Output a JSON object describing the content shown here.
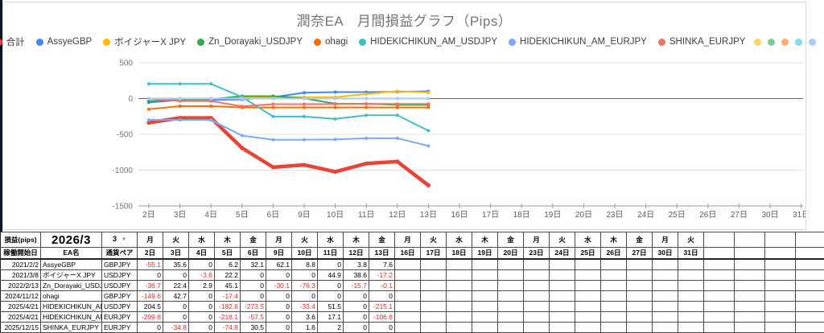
{
  "chart_data": {
    "type": "line",
    "title": "潤奈EA　月間損益グラフ（Pips）",
    "xlabel": "",
    "ylabel": "",
    "unit": "Pips",
    "ylim": [
      -1500,
      500
    ],
    "y_ticks": [
      500,
      0,
      -500,
      -1000,
      -1500
    ],
    "x_tick_labels": [
      "2日",
      "3日",
      "4日",
      "5日",
      "6日",
      "9日",
      "10日",
      "11日",
      "12日",
      "13日",
      "16日",
      "17日",
      "18日",
      "19日",
      "20日",
      "23日",
      "24日",
      "25日",
      "26日",
      "27日",
      "30日",
      "31日"
    ],
    "grid": true,
    "legend_position": "top",
    "series": [
      {
        "name": "合計",
        "color": "#ea4335",
        "line_width": 4.5,
        "values": [
          -336.7,
          -270.8,
          -271.5,
          -690.9,
          -959.3,
          -927.3,
          -1023.0,
          -907.5,
          -880.8,
          -1212.4
        ]
      },
      {
        "name": "AssyeGBP",
        "color": "#4285f4",
        "line_width": 2,
        "values": [
          -55.1,
          -19.5,
          -19.5,
          -13.3,
          18.8,
          80.9,
          89.7,
          89.7,
          93.5,
          101.1
        ]
      },
      {
        "name": "ボイジャーX JPY",
        "color": "#fbbc04",
        "line_width": 2,
        "values": [
          0,
          0,
          -3.6,
          18.6,
          18.6,
          18.6,
          18.6,
          63.5,
          102.1,
          84.9
        ]
      },
      {
        "name": "Zn_Dorayaki_USDJPY",
        "color": "#34a853",
        "line_width": 2,
        "values": [
          -36.7,
          -14.3,
          -11.4,
          33.7,
          33.7,
          3.6,
          -72.7,
          -72.7,
          -88.4,
          -88.5
        ]
      },
      {
        "name": "ohagi",
        "color": "#ff6d01",
        "line_width": 2,
        "values": [
          -149.6,
          -106.9,
          -106.9,
          -124.3,
          -124.3,
          -124.3,
          -124.3,
          -124.3,
          -124.3,
          -124.3
        ]
      },
      {
        "name": "HIDEKICHIKUN_AM_USDJPY",
        "color": "#46bdc6",
        "line_width": 2,
        "values": [
          204.5,
          204.5,
          204.5,
          21.9,
          -251.6,
          -251.6,
          -285.0,
          -233.5,
          -233.5,
          -448.6
        ]
      },
      {
        "name": "HIDEKICHIKUN_AM_EURJPY",
        "color": "#7baaf7",
        "line_width": 2,
        "values": [
          -299.8,
          -299.8,
          -299.8,
          -517.9,
          -575.4,
          -575.4,
          -571.8,
          -554.7,
          -554.7,
          -661.5
        ]
      },
      {
        "name": "SHINKA_EURJPY",
        "color": "#f0726a",
        "line_width": 2,
        "values": [
          0,
          -34.8,
          -34.8,
          -109.6,
          -79.1,
          -79.1,
          -77.5,
          -75.5,
          -75.5,
          -75.5
        ]
      }
    ],
    "hidden_series": [
      {
        "name": "",
        "color": "#fdd663",
        "line_width": 2,
        "values": [
          0,
          0,
          0,
          0,
          0,
          0,
          0,
          0,
          0,
          0
        ]
      },
      {
        "name": "",
        "color": "#81c995",
        "line_width": 2,
        "values": [
          0,
          0,
          0,
          0,
          0,
          0,
          0,
          0,
          0,
          0
        ]
      },
      {
        "name": "",
        "color": "#fcad70",
        "line_width": 2,
        "values": [
          0,
          0,
          0,
          0,
          0,
          0,
          0,
          0,
          0,
          0
        ]
      },
      {
        "name": "",
        "color": "#86dbe8",
        "line_width": 2,
        "values": [
          0,
          0,
          0,
          0,
          0,
          0,
          0,
          0,
          0,
          0
        ]
      },
      {
        "name": "",
        "color": "#aecbfa",
        "line_width": 2,
        "values": [
          0,
          0,
          0,
          0,
          0,
          0,
          0,
          0,
          0,
          0
        ]
      }
    ],
    "axis_colors": {
      "label": "#757575",
      "baseline": "#616161",
      "gridline": "#e0e0e0",
      "axisline": "#9e9e9e"
    }
  },
  "table": {
    "unit_label": "損益(pips)",
    "month_label": "2026/3",
    "month_selector_value": "3",
    "col_headers": {
      "start_date": "稼働開始日",
      "ea_name": "EA名",
      "pair": "通貨ペア"
    },
    "weekdays": [
      "月",
      "火",
      "水",
      "木",
      "金",
      "月",
      "火",
      "水",
      "木",
      "金",
      "月",
      "火",
      "水",
      "木",
      "金",
      "月",
      "火",
      "水",
      "木",
      "金",
      "月",
      "火"
    ],
    "date_headers": [
      "2日",
      "3日",
      "4日",
      "5日",
      "6日",
      "9日",
      "10日",
      "11日",
      "12日",
      "13日",
      "16日",
      "17日",
      "18日",
      "19日",
      "20日",
      "23日",
      "24日",
      "25日",
      "26日",
      "27日",
      "30日",
      "31日"
    ],
    "empty_trailing_columns": 4,
    "colors": {
      "negative_value": "#f02b2b"
    },
    "rows": [
      {
        "start_date": "2021/2/2",
        "ea_name": "AssyeGBP",
        "pair": "GBPJPY",
        "values": [
          "-55.1",
          "35.6",
          "0",
          "6.2",
          "32.1",
          "62.1",
          "8.8",
          "0",
          "3.8",
          "7.6"
        ]
      },
      {
        "start_date": "2021/3/8",
        "ea_name": "ボイジャーX JPY",
        "pair": "USDJPY",
        "values": [
          "0",
          "0",
          "-3.6",
          "22.2",
          "0",
          "0",
          "0",
          "44.9",
          "38.6",
          "-17.2"
        ]
      },
      {
        "start_date": "2022/2/13",
        "ea_name": "Zn_Dorayaki_USDJPY",
        "pair": "USDJPY",
        "values": [
          "-36.7",
          "22.4",
          "2.9",
          "45.1",
          "0",
          "-30.1",
          "-76.3",
          "0",
          "-15.7",
          "-0.1"
        ]
      },
      {
        "start_date": "2024/11/12",
        "ea_name": "ohagi",
        "pair": "GBPJPY",
        "values": [
          "-149.6",
          "42.7",
          "0",
          "-17.4",
          "0",
          "0",
          "0",
          "0",
          "0",
          "0"
        ]
      },
      {
        "start_date": "2025/4/21",
        "ea_name": "HIDEKICHIKUN_AM_USDJPY",
        "pair": "USDJPY",
        "values": [
          "204.5",
          "0",
          "0",
          "-182.6",
          "-273.5",
          "0",
          "-33.4",
          "51.5",
          "0",
          "-215.1"
        ]
      },
      {
        "start_date": "2025/4/21",
        "ea_name": "HIDEKICHIKUN_AM_EURJPY",
        "pair": "EURJPY",
        "values": [
          "-299.8",
          "0",
          "0",
          "-218.1",
          "-57.5",
          "0",
          "3.6",
          "17.1",
          "0",
          "-106.8"
        ]
      },
      {
        "start_date": "2025/12/15",
        "ea_name": "SHINKA_EURJPY",
        "pair": "EURJPY",
        "values": [
          "0",
          "-34.8",
          "0",
          "-74.8",
          "30.5",
          "0",
          "1.6",
          "2",
          "0",
          "0"
        ]
      }
    ]
  }
}
